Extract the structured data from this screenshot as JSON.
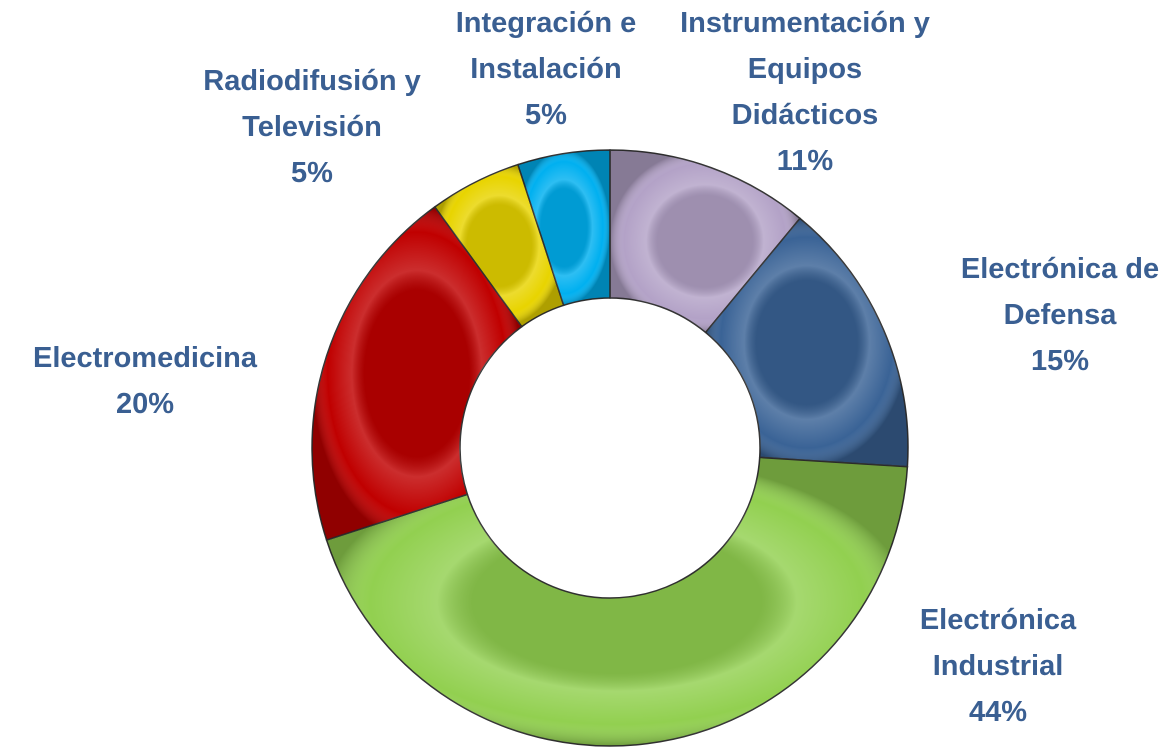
{
  "chart_data": {
    "type": "donut",
    "categories": [
      "Instrumentación y Equipos Didácticos",
      "Electrónica de Defensa",
      "Electrónica Industrial",
      "Electromedicina",
      "Radiodifusión y Televisión",
      "Integración e Instalación"
    ],
    "values": [
      11,
      15,
      44,
      20,
      5,
      5
    ],
    "value_labels": [
      "11%",
      "15%",
      "44%",
      "20%",
      "5%",
      "5%"
    ],
    "colors": [
      "#b3a2c7",
      "#3a6396",
      "#92d050",
      "#c00000",
      "#e8d400",
      "#00b0f0"
    ]
  }
}
